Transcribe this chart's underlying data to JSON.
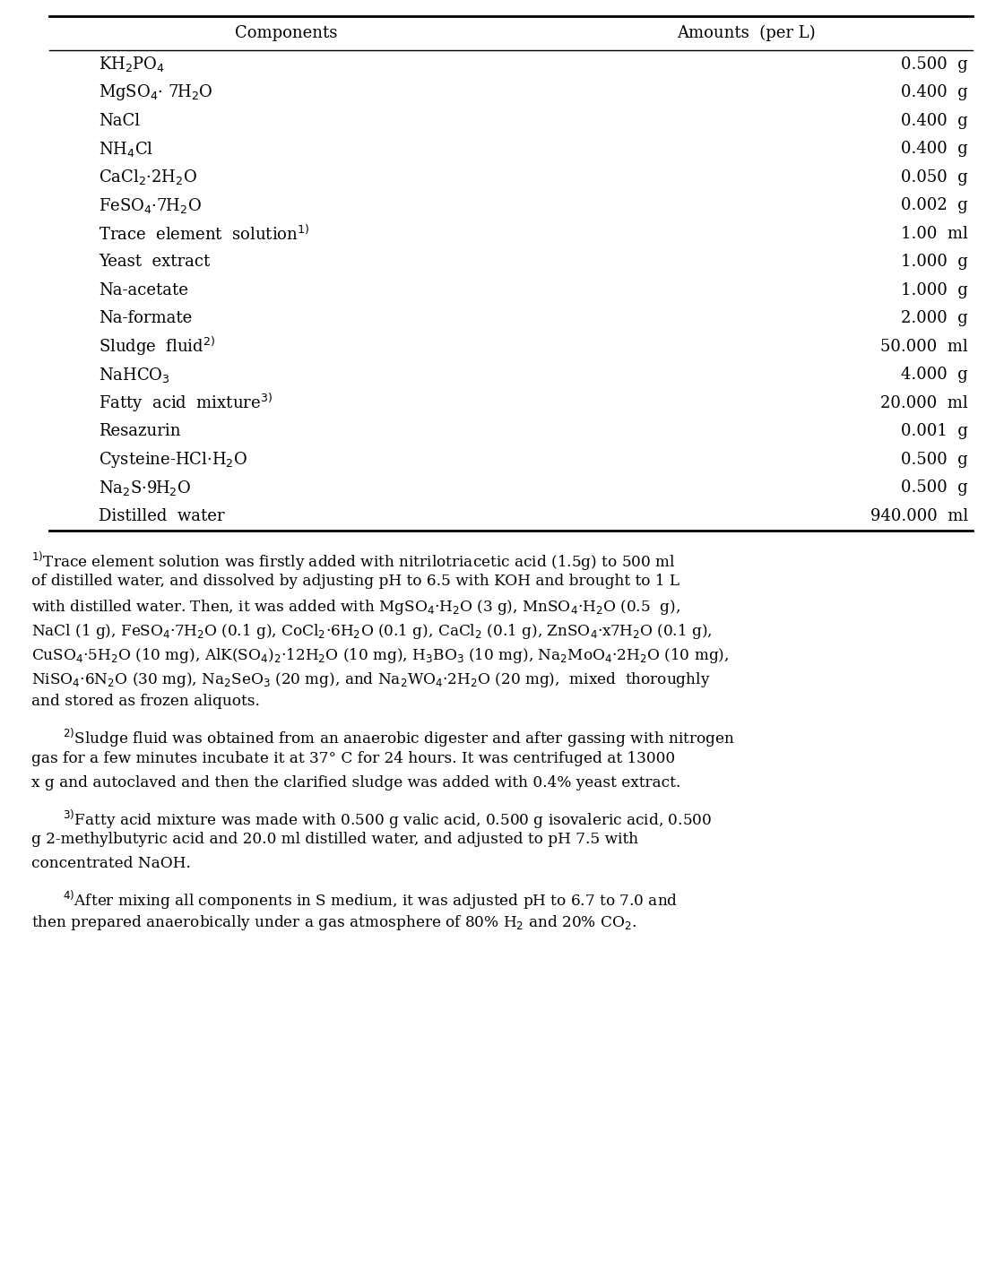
{
  "table_rows": [
    [
      "KH$_2$PO$_4$",
      "0.500  g"
    ],
    [
      "MgSO$_4$· 7H$_2$O",
      "0.400  g"
    ],
    [
      "NaCl",
      "0.400  g"
    ],
    [
      "NH$_4$Cl",
      "0.400  g"
    ],
    [
      "CaCl$_2$·2H$_2$O",
      "0.050  g"
    ],
    [
      "FeSO$_4$·7H$_2$O",
      "0.002  g"
    ],
    [
      "Trace  element  solution$^{1)}$",
      "1.00  ml"
    ],
    [
      "Yeast  extract",
      "1.000  g"
    ],
    [
      "Na-acetate",
      "1.000  g"
    ],
    [
      "Na-formate",
      "2.000  g"
    ],
    [
      "Sludge  fluid$^{2)}$",
      "50.000  ml"
    ],
    [
      "NaHCO$_3$",
      "4.000  g"
    ],
    [
      "Fatty  acid  mixture$^{3)}$",
      "20.000  ml"
    ],
    [
      "Resazurin",
      "0.001  g"
    ],
    [
      "Cysteine-HCl·H$_2$O",
      "0.500  g"
    ],
    [
      "Na$_2$S·9H$_2$O",
      "0.500  g"
    ],
    [
      "Distilled  water",
      "940.000  ml"
    ]
  ],
  "col_headers": [
    "Components",
    "Amounts  (per L)"
  ],
  "footnote_blocks": [
    {
      "lines": [
        "$^{1)}$Trace element solution was firstly added with nitrilotriacetic acid (1.5g) to 500 ml",
        "of distilled water, and dissolved by adjusting pH to 6.5 with KOH and brought to 1 L",
        "with distilled water. Then, it was added with MgSO$_4$·H$_2$O (3 g), MnSO$_4$·H$_2$O (0.5  g),",
        "NaCl (1 g), FeSO$_4$·7H$_2$O (0.1 g), CoCl$_2$·6H$_2$O (0.1 g), CaCl$_2$ (0.1 g), ZnSO$_4$·x7H$_2$O (0.1 g),",
        "CuSO$_4$·5H$_2$O (10 mg), AlK(SO$_4$)$_2$·12H$_2$O (10 mg), H$_3$BO$_3$ (10 mg), Na$_2$MoO$_4$·2H$_2$O (10 mg),",
        "NiSO$_4$·6N$_2$O (30 mg), Na$_2$SeO$_3$ (20 mg), and Na$_2$WO$_4$·2H$_2$O (20 mg),  mixed  thoroughly",
        "and stored as frozen aliquots."
      ],
      "indent": false
    },
    {
      "lines": [
        "$^{2)}$Sludge fluid was obtained from an anaerobic digester and after gassing with nitrogen",
        "gas for a few minutes incubate it at 37° C for 24 hours. It was centrifuged at 13000",
        "x g and autoclaved and then the clarified sludge was added with 0.4% yeast extract."
      ],
      "indent": true
    },
    {
      "lines": [
        "$^{3)}$Fatty acid mixture was made with 0.500 g valic acid, 0.500 g isovaleric acid, 0.500",
        "g 2-methylbutyric acid and 20.0 ml distilled water, and adjusted to pH 7.5 with",
        "concentrated NaOH."
      ],
      "indent": true
    },
    {
      "lines": [
        "$^{4)}$After mixing all components in S medium, it was adjusted pH to 6.7 to 7.0 and",
        "then prepared anaerobically under a gas atmosphere of 80% H$_2$ and 20% CO$_2$."
      ],
      "indent": true
    }
  ],
  "bg_color": "#ffffff",
  "text_color": "#000000",
  "font_size": 13.0,
  "header_font_size": 13.0,
  "footnote_font_size": 12.2
}
